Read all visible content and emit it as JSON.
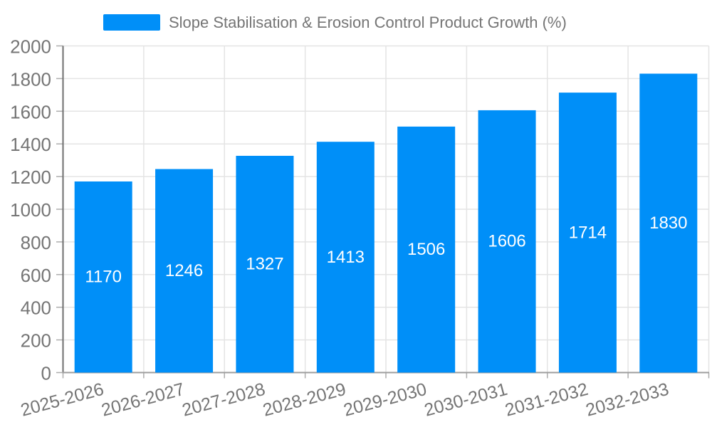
{
  "chart_data": {
    "type": "bar",
    "title": "Slope Stabilisation & Erosion Control Product Growth (%)",
    "categories": [
      "2025-2026",
      "2026-2027",
      "2027-2028",
      "2028-2029",
      "2029-2030",
      "2030-2031",
      "2031-2032",
      "2032-2033"
    ],
    "values": [
      1170,
      1246,
      1327,
      1413,
      1506,
      1606,
      1714,
      1830
    ],
    "xlabel": "",
    "ylabel": "",
    "ylim": [
      0,
      2000
    ],
    "ytick_step": 200,
    "yticks": [
      0,
      200,
      400,
      600,
      800,
      1000,
      1200,
      1400,
      1600,
      1800,
      2000
    ],
    "grid": true,
    "legend_position": "top",
    "value_label_position": "inside-center",
    "x_tick_rotation_deg": -15,
    "colors": {
      "bar": "#008FF8",
      "value_label": "#FFFFFF",
      "axis_text": "#757575",
      "grid": "#E4E4E4",
      "axis_line": "#6E6E6E",
      "baseline": "#9E9E9E",
      "tick": "#ADADAD",
      "background": "#FFFFFF"
    }
  }
}
